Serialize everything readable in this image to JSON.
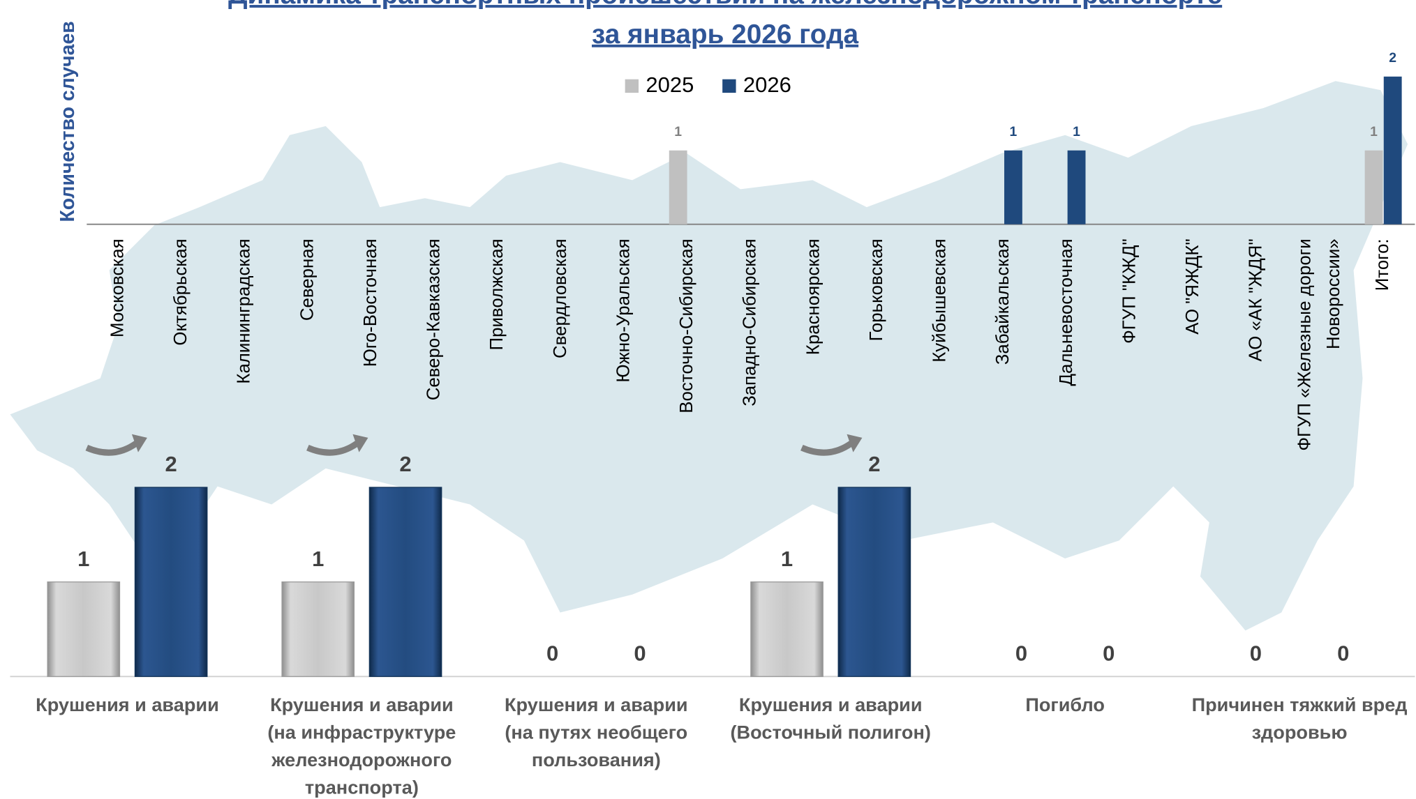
{
  "chart_data": [
    {
      "type": "bar",
      "title": [
        "Динамика транспортных происшествий на железнодорожном транспорте",
        "за январь 2026 года"
      ],
      "y_label": "Количество случаев",
      "categories": [
        [
          "Московская"
        ],
        [
          "Октябрьская"
        ],
        [
          "Калининградская"
        ],
        [
          "Северная"
        ],
        [
          "Юго-Восточная"
        ],
        [
          "Северо-Кавказская"
        ],
        [
          "Приволжская"
        ],
        [
          "Свердловская"
        ],
        [
          "Южно-Уральская"
        ],
        [
          "Восточно-Сибирская"
        ],
        [
          "Западно-Сибирская"
        ],
        [
          "Красноярская"
        ],
        [
          "Горьковская"
        ],
        [
          "Куйбышевская"
        ],
        [
          "Забайкальская"
        ],
        [
          "Дальневосточная"
        ],
        [
          "ФГУП \"КЖД\""
        ],
        [
          "АО \"ЯЖДК\""
        ],
        [
          "АО «АК  \"ЖДЯ\""
        ],
        [
          "ФГУП «Железные дороги",
          "Новороссии»"
        ],
        [
          "Итого:"
        ]
      ],
      "series": [
        {
          "name": "2025",
          "color": "#c0c0c0",
          "values": [
            0,
            0,
            0,
            0,
            0,
            0,
            0,
            0,
            0,
            1,
            0,
            0,
            0,
            0,
            0,
            0,
            0,
            0,
            0,
            0,
            1
          ]
        },
        {
          "name": "2026",
          "color": "#1f497d",
          "values": [
            0,
            0,
            0,
            0,
            0,
            0,
            0,
            0,
            0,
            0,
            0,
            0,
            0,
            0,
            1,
            1,
            0,
            0,
            0,
            0,
            2
          ]
        }
      ],
      "ylim": [
        0,
        2
      ],
      "legend": "top"
    },
    {
      "type": "bar",
      "categories": [
        [
          "Крушения и аварии"
        ],
        [
          "Крушения и аварии",
          "(на инфраструктуре",
          "железнодорожного",
          "транспорта)"
        ],
        [
          "Крушения и аварии",
          "(на путях необщего",
          "пользования)"
        ],
        [
          "Крушения и аварии",
          "(Восточный полигон)"
        ],
        [
          "Погибло"
        ],
        [
          "Причинен тяжкий вред",
          "здоровью"
        ]
      ],
      "series": [
        {
          "color": "#c0c0c0",
          "values": [
            1,
            1,
            0,
            1,
            0,
            0
          ]
        },
        {
          "color": "#1f497d",
          "values": [
            2,
            2,
            0,
            2,
            0,
            0
          ]
        }
      ],
      "ylim": [
        0,
        2
      ]
    }
  ]
}
